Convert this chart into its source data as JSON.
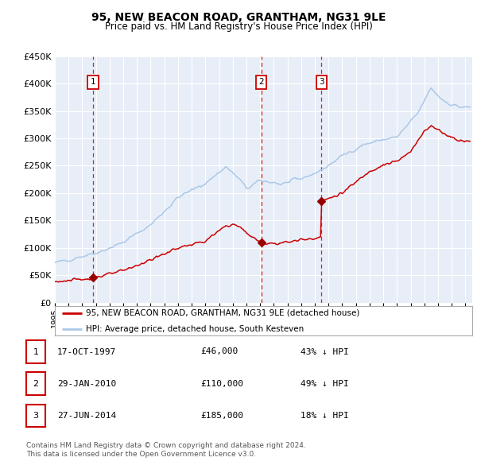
{
  "title": "95, NEW BEACON ROAD, GRANTHAM, NG31 9LE",
  "subtitle": "Price paid vs. HM Land Registry's House Price Index (HPI)",
  "footer_line1": "Contains HM Land Registry data © Crown copyright and database right 2024.",
  "footer_line2": "This data is licensed under the Open Government Licence v3.0.",
  "legend_red": "95, NEW BEACON ROAD, GRANTHAM, NG31 9LE (detached house)",
  "legend_blue": "HPI: Average price, detached house, South Kesteven",
  "transactions": [
    {
      "num": 1,
      "date": "1997-10-17",
      "price": 46000,
      "pct": "43%",
      "dir": "↓",
      "x_year": 1997.79
    },
    {
      "num": 2,
      "date": "2010-01-29",
      "price": 110000,
      "pct": "49%",
      "dir": "↓",
      "x_year": 2010.08
    },
    {
      "num": 3,
      "date": "2014-06-27",
      "price": 185000,
      "pct": "18%",
      "dir": "↓",
      "x_year": 2014.49
    }
  ],
  "table_rows": [
    {
      "num": 1,
      "date_str": "17-OCT-1997",
      "price_str": "£46,000",
      "info": "43% ↓ HPI"
    },
    {
      "num": 2,
      "date_str": "29-JAN-2010",
      "price_str": "£110,000",
      "info": "49% ↓ HPI"
    },
    {
      "num": 3,
      "date_str": "27-JUN-2014",
      "price_str": "£185,000",
      "info": "18% ↓ HPI"
    }
  ],
  "ylim": [
    0,
    450000
  ],
  "yticks": [
    0,
    50000,
    100000,
    150000,
    200000,
    250000,
    300000,
    350000,
    400000,
    450000
  ],
  "xlim_start": 1995.0,
  "xlim_end": 2025.5,
  "xtick_years": [
    1995,
    1996,
    1997,
    1998,
    1999,
    2000,
    2001,
    2002,
    2003,
    2004,
    2005,
    2006,
    2007,
    2008,
    2009,
    2010,
    2011,
    2012,
    2013,
    2014,
    2015,
    2016,
    2017,
    2018,
    2019,
    2020,
    2021,
    2022,
    2023,
    2024,
    2025
  ],
  "bg_color": "#e8eef8",
  "grid_color": "#ffffff",
  "red_line_color": "#cc0000",
  "blue_line_color": "#aac8e8",
  "dashed_line_color": "#cc0000",
  "marker_color": "#990000",
  "box_edge_color": "#cc0000",
  "box_face_color": "#ffffff"
}
